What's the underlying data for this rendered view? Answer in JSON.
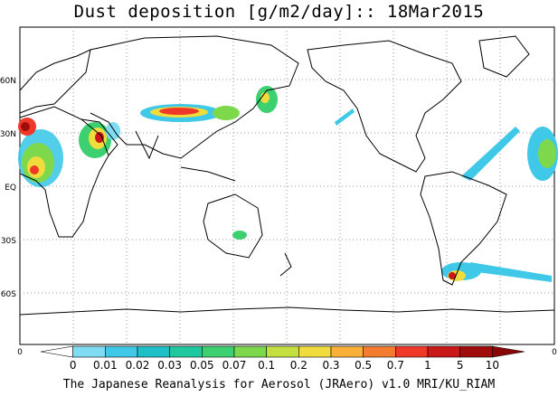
{
  "title": "Dust deposition [g/m2/day]:: 18Mar2015",
  "footer": "The Japanese Reanalysis for Aerosol (JRAero) v1.0 MRI/KU_RIAM",
  "lat_labels": [
    "60N",
    "30N",
    "EQ",
    "30S",
    "60S"
  ],
  "lon_edge_labels": [
    "0",
    "0"
  ],
  "colorbar": {
    "labels": [
      "0",
      "0.01",
      "0.02",
      "0.03",
      "0.05",
      "0.07",
      "0.1",
      "0.2",
      "0.3",
      "0.5",
      "0.7",
      "1",
      "5",
      "10"
    ],
    "colors": [
      "#ffffff",
      "#7fdcf2",
      "#3fc8e8",
      "#1ec0c8",
      "#20c8a0",
      "#3cd070",
      "#7ed84c",
      "#c4e040",
      "#f0dc3c",
      "#f8b038",
      "#f47c30",
      "#f03828",
      "#c81818",
      "#a00c0c",
      "#8a0606"
    ]
  },
  "colors": {
    "coast": "#000000",
    "grid": "#999999"
  }
}
